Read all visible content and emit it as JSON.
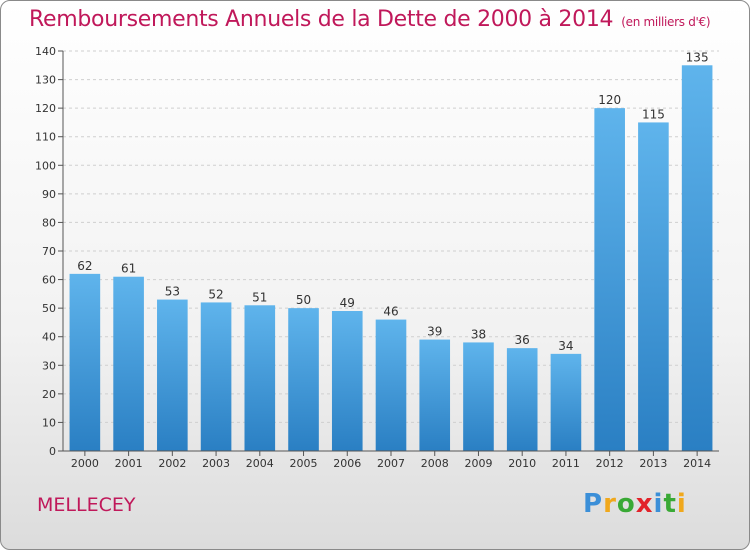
{
  "title": "Remboursements Annuels de la Dette de 2000 à 2014",
  "subtitle": "(en milliers d'€)",
  "commune": "MELLECEY",
  "logo": {
    "text": "Proxiti",
    "letters": [
      "P",
      "r",
      "o",
      "x",
      "i",
      "t",
      "i"
    ],
    "colors": [
      "#3b8fd8",
      "#f0a81c",
      "#39a935",
      "#e2232a",
      "#3b8fd8",
      "#39a935",
      "#f0a81c"
    ]
  },
  "colors": {
    "title": "#c0185a",
    "bar_top": "#5fb4ec",
    "bar_bottom": "#2a7fc3",
    "axis": "#555555",
    "grid": "#cfcfcf"
  },
  "chart_data": {
    "type": "bar",
    "title": "Remboursements Annuels de la Dette de 2000 à 2014",
    "unit": "(en milliers d'€)",
    "categories": [
      "2000",
      "2001",
      "2002",
      "2003",
      "2004",
      "2005",
      "2006",
      "2007",
      "2008",
      "2009",
      "2010",
      "2011",
      "2012",
      "2013",
      "2014"
    ],
    "values": [
      62,
      61,
      53,
      52,
      51,
      50,
      49,
      46,
      39,
      38,
      36,
      34,
      120,
      115,
      135
    ],
    "ylim": [
      0,
      140
    ],
    "yticks": [
      0,
      10,
      20,
      30,
      40,
      50,
      60,
      70,
      80,
      90,
      100,
      110,
      120,
      130,
      140
    ],
    "grid": true,
    "xlabel": "",
    "ylabel": ""
  }
}
